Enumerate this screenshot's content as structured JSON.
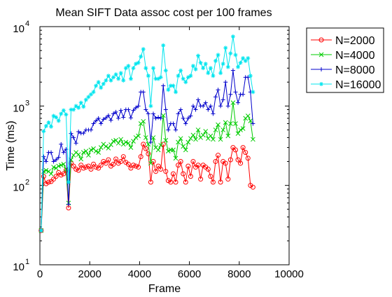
{
  "chart_data": {
    "type": "line",
    "title": "Mean SIFT Data assoc cost per 100 frames",
    "xlabel": "Frame",
    "ylabel": "Time (ms)",
    "xlim": [
      0,
      10000
    ],
    "ylim": [
      10,
      10000
    ],
    "yscale": "log",
    "grid": false,
    "legend_position": "outside top-right",
    "x_ticks": [
      "0",
      "2000",
      "4000",
      "6000",
      "8000",
      "10000"
    ],
    "y_ticks": [
      {
        "base": "10",
        "exp": "1"
      },
      {
        "base": "10",
        "exp": "2"
      },
      {
        "base": "10",
        "exp": "3"
      },
      {
        "base": "10",
        "exp": "4"
      }
    ],
    "x": [
      50,
      150,
      250,
      350,
      450,
      550,
      650,
      750,
      850,
      950,
      1050,
      1150,
      1250,
      1350,
      1450,
      1550,
      1650,
      1750,
      1850,
      1950,
      2050,
      2150,
      2250,
      2350,
      2450,
      2550,
      2650,
      2750,
      2850,
      2950,
      3050,
      3150,
      3250,
      3350,
      3450,
      3550,
      3650,
      3750,
      3850,
      3950,
      4050,
      4150,
      4250,
      4350,
      4450,
      4550,
      4650,
      4750,
      4850,
      4950,
      5050,
      5150,
      5250,
      5350,
      5450,
      5550,
      5650,
      5750,
      5850,
      5950,
      6050,
      6150,
      6250,
      6350,
      6450,
      6550,
      6650,
      6750,
      6850,
      6950,
      7050,
      7150,
      7250,
      7350,
      7450,
      7550,
      7650,
      7750,
      7850,
      7950,
      8050,
      8150,
      8250,
      8350,
      8450,
      8550
    ],
    "series": [
      {
        "name": "N=2000",
        "color": "#ff0000",
        "marker": "circle",
        "values": [
          27,
          130,
          105,
          110,
          112,
          120,
          130,
          145,
          135,
          140,
          155,
          52,
          190,
          175,
          160,
          155,
          180,
          165,
          170,
          175,
          160,
          185,
          170,
          165,
          180,
          200,
          190,
          210,
          175,
          185,
          215,
          190,
          200,
          230,
          195,
          185,
          165,
          180,
          175,
          170,
          230,
          330,
          290,
          250,
          110,
          200,
          150,
          175,
          160,
          330,
          150,
          115,
          110,
          140,
          110,
          180,
          200,
          140,
          110,
          175,
          130,
          200,
          170,
          180,
          120,
          180,
          170,
          160,
          130,
          110,
          200,
          240,
          110,
          200,
          190,
          120,
          210,
          300,
          280,
          210,
          190,
          300,
          260,
          220,
          100,
          95
        ]
      },
      {
        "name": "N=4000",
        "color": "#00cc00",
        "marker": "x",
        "values": [
          27,
          150,
          155,
          150,
          140,
          170,
          165,
          175,
          180,
          185,
          160,
          60,
          210,
          240,
          260,
          245,
          215,
          260,
          270,
          240,
          280,
          290,
          270,
          260,
          300,
          330,
          310,
          295,
          325,
          360,
          370,
          340,
          380,
          330,
          350,
          340,
          300,
          360,
          400,
          420,
          600,
          640,
          400,
          330,
          190,
          400,
          300,
          280,
          320,
          760,
          370,
          270,
          280,
          280,
          220,
          350,
          390,
          310,
          280,
          350,
          390,
          430,
          380,
          500,
          400,
          430,
          480,
          390,
          420,
          380,
          500,
          580,
          380,
          500,
          620,
          420,
          600,
          1100,
          600,
          450,
          500,
          520,
          700,
          750,
          650,
          380
        ]
      },
      {
        "name": "N=8000",
        "color": "#0000cc",
        "marker": "plus",
        "values": [
          27,
          230,
          200,
          260,
          260,
          200,
          210,
          225,
          330,
          260,
          285,
          58,
          450,
          400,
          340,
          475,
          455,
          455,
          500,
          500,
          500,
          600,
          650,
          700,
          600,
          680,
          710,
          760,
          660,
          800,
          840,
          700,
          880,
          720,
          900,
          900,
          710,
          880,
          950,
          1000,
          1500,
          1500,
          900,
          800,
          350,
          800,
          700,
          720,
          700,
          1800,
          900,
          500,
          600,
          600,
          500,
          800,
          900,
          700,
          600,
          700,
          750,
          1000,
          900,
          1200,
          1000,
          1000,
          1100,
          900,
          1000,
          800,
          1300,
          1600,
          1000,
          1200,
          2000,
          1000,
          1400,
          2800,
          1500,
          1100,
          1400,
          1400,
          2300,
          2300,
          1500,
          600
        ]
      },
      {
        "name": "N=16000",
        "color": "#00e5ee",
        "marker": "star",
        "values": [
          27,
          480,
          560,
          620,
          550,
          750,
          720,
          650,
          800,
          880,
          780,
          110,
          900,
          900,
          1000,
          950,
          1100,
          980,
          1200,
          1300,
          1400,
          1500,
          1800,
          2000,
          1700,
          1900,
          2100,
          2400,
          2100,
          2300,
          2500,
          2200,
          2600,
          2100,
          3000,
          3200,
          2200,
          3000,
          3400,
          3500,
          4200,
          5200,
          3000,
          2400,
          1000,
          3000,
          2200,
          2200,
          2300,
          5800,
          2800,
          1600,
          1800,
          1800,
          1500,
          2400,
          2800,
          2200,
          2000,
          2300,
          2400,
          3200,
          2900,
          4300,
          3500,
          3000,
          3400,
          2600,
          3000,
          2400,
          3700,
          4400,
          2600,
          3400,
          5400,
          3100,
          4600,
          7500,
          4400,
          3100,
          3500,
          4000,
          3700,
          4000,
          2400,
          1500
        ]
      }
    ]
  }
}
